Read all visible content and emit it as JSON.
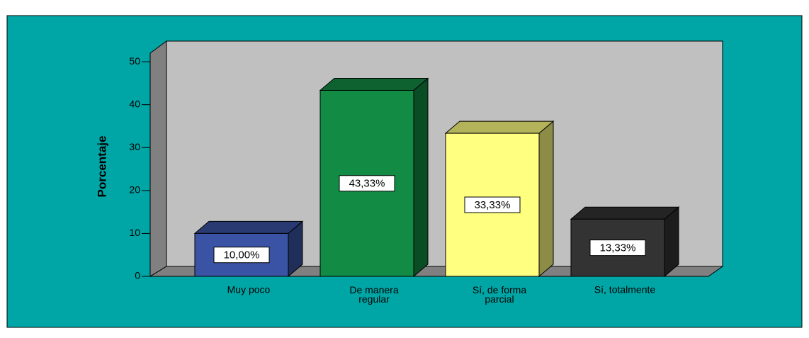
{
  "chart_data": {
    "type": "bar3d",
    "y_label": "Porcentaje",
    "categories": [
      "Muy poco",
      "De manera regular",
      "Sí, de forma parcial",
      "Sí, totalmente"
    ],
    "values": [
      10,
      43.33,
      33.33,
      13.33
    ],
    "value_labels": [
      "10,00%",
      "43,33%",
      "33,33%",
      "13,33%"
    ],
    "colors": [
      "#3a53a4",
      "#128c44",
      "#ffff80",
      "#333333"
    ],
    "ylim": [
      0,
      52
    ],
    "yticks": [
      0,
      10,
      20,
      30,
      40,
      50
    ]
  }
}
